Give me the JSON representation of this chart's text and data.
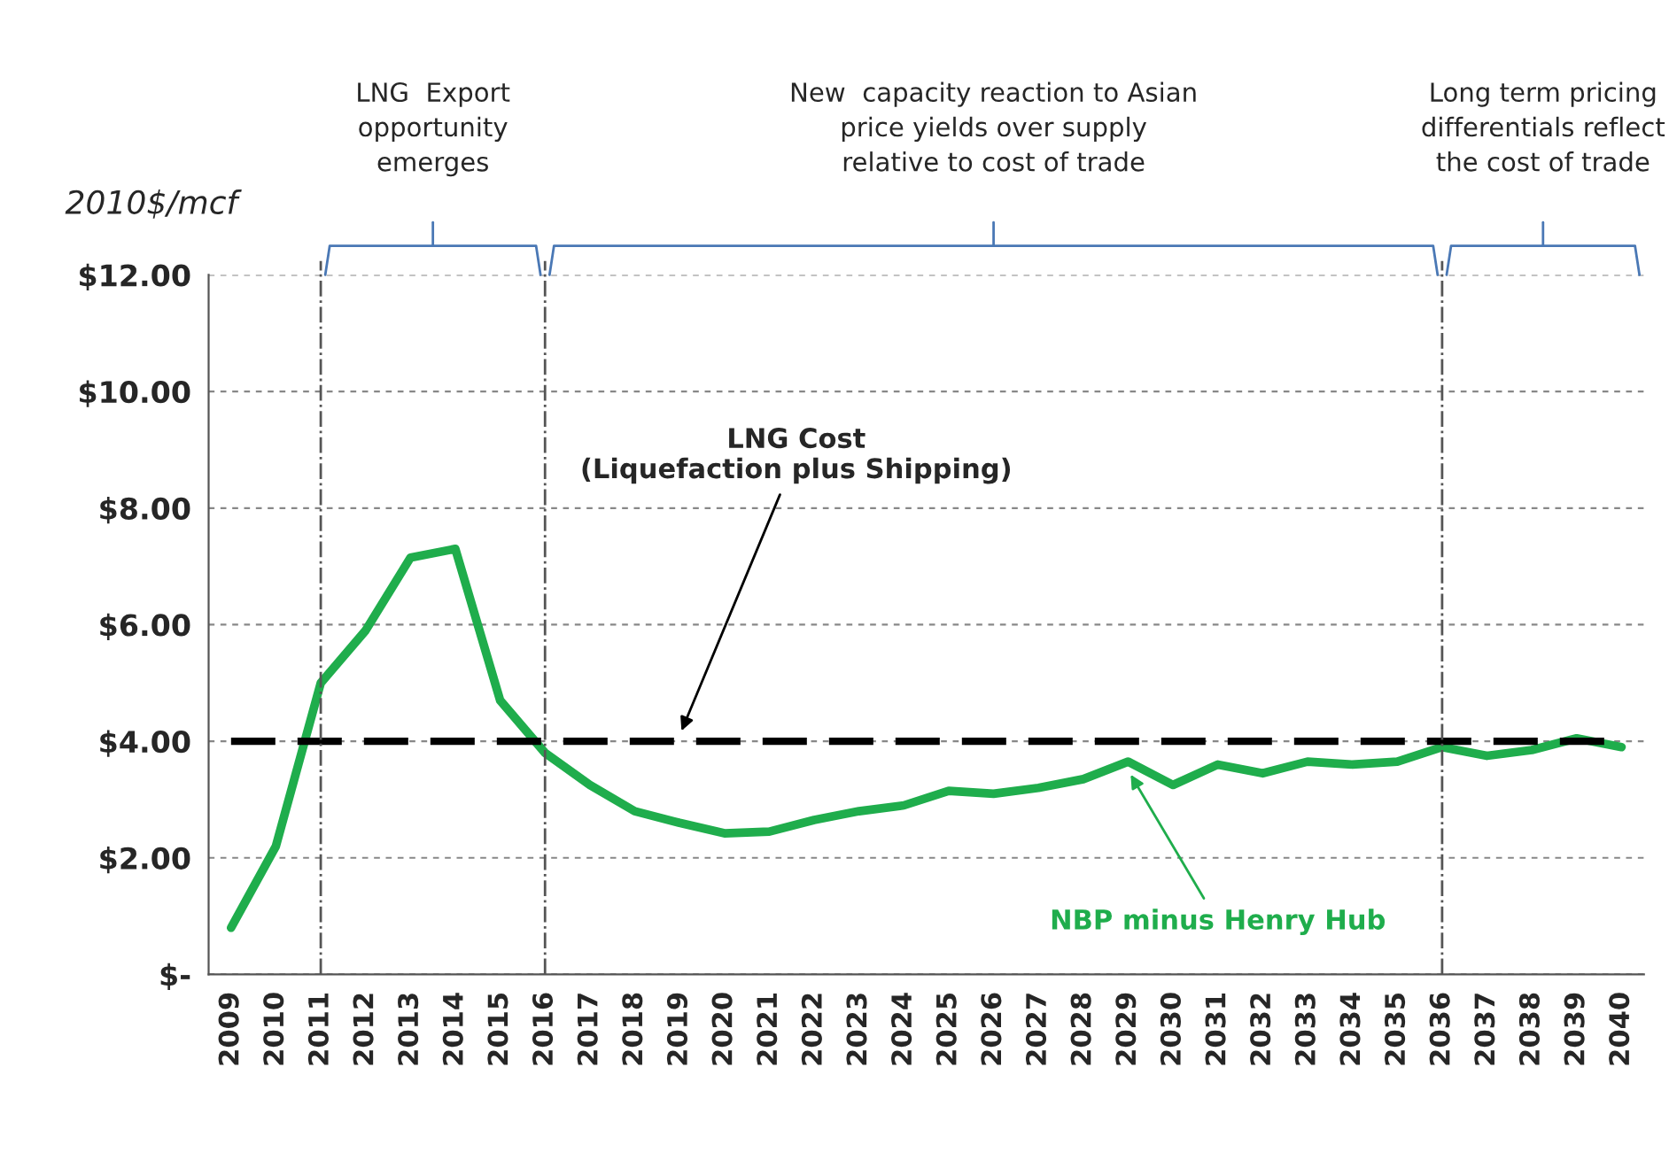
{
  "chart_data": {
    "type": "line",
    "categories": [
      "2009",
      "2010",
      "2011",
      "2012",
      "2013",
      "2014",
      "2015",
      "2016",
      "2017",
      "2018",
      "2019",
      "2020",
      "2021",
      "2022",
      "2023",
      "2024",
      "2025",
      "2026",
      "2027",
      "2028",
      "2029",
      "2030",
      "2031",
      "2032",
      "2033",
      "2034",
      "2035",
      "2036",
      "2037",
      "2038",
      "2039",
      "2040"
    ],
    "series": [
      {
        "name": "NBP minus Henry Hub",
        "color": "#1fad4c",
        "values": [
          0.8,
          2.2,
          5.0,
          5.9,
          7.15,
          7.3,
          4.7,
          3.8,
          3.25,
          2.8,
          2.6,
          2.42,
          2.45,
          2.65,
          2.8,
          2.9,
          3.15,
          3.1,
          3.2,
          3.35,
          3.65,
          3.25,
          3.6,
          3.45,
          3.65,
          3.6,
          3.65,
          3.9,
          3.75,
          3.85,
          4.05,
          3.9
        ]
      }
    ],
    "ylabel": "2010$/mcf",
    "ylim": [
      0,
      12
    ],
    "yticks": [
      {
        "value": 0,
        "label": "$-"
      },
      {
        "value": 2,
        "label": "$2.00"
      },
      {
        "value": 4,
        "label": "$4.00"
      },
      {
        "value": 6,
        "label": "$6.00"
      },
      {
        "value": 8,
        "label": "$8.00"
      },
      {
        "value": 10,
        "label": "$10.00"
      },
      {
        "value": 12,
        "label": "$12.00"
      }
    ],
    "grid": "y",
    "ref_lines": [
      {
        "axis": "y",
        "value": 4,
        "label": "LNG Cost\n(Liquefaction plus Shipping)",
        "color": "#000000",
        "line_style": "dashed"
      },
      {
        "axis": "x",
        "value": "2011",
        "color": "#555555",
        "line_style": "dashdot"
      },
      {
        "axis": "x",
        "value": "2016",
        "color": "#555555",
        "line_style": "dashdot"
      },
      {
        "axis": "x",
        "value": "2036",
        "color": "#555555",
        "line_style": "dashdot"
      }
    ],
    "annotations": [
      "LNG  Export\nopportunity\nemerges",
      "New  capacity reaction to Asian\nprice yields over supply\nrelative to cost of trade",
      "Long term pricing\ndifferentials reflect\nthe cost of trade"
    ]
  }
}
